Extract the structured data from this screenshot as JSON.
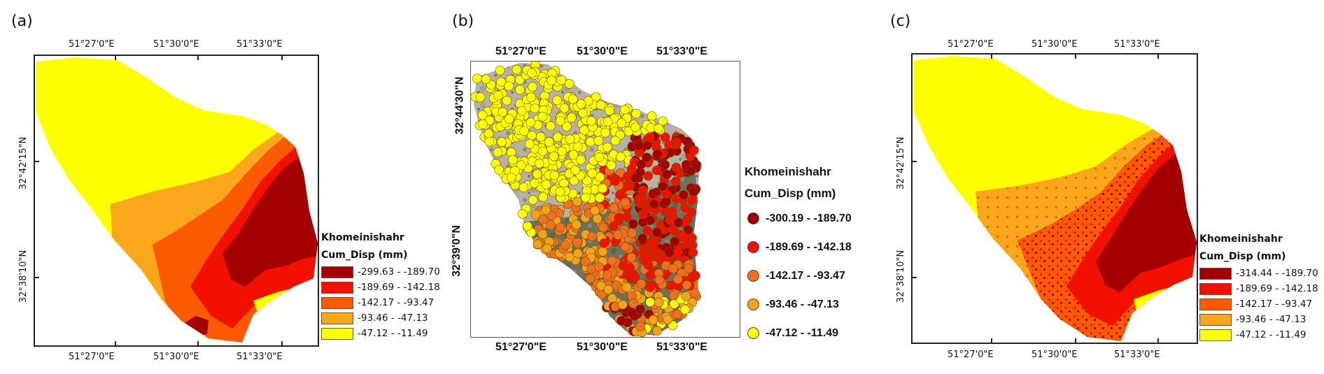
{
  "panels": [
    {
      "label": "(a)",
      "top_ticks": [
        "51°27'0\"E",
        "51°30'0\"E",
        "51°33'0\"E"
      ],
      "bottom_ticks": [
        "51°27'0\"E",
        "51°30'0\"E",
        "51°33'0\"E"
      ],
      "left_ticks": [
        "32°42'15\"N",
        "32°38'10\"N"
      ],
      "legend": {
        "title_line1": "Khomeinishahr",
        "title_line2": "Cum_Disp (mm)",
        "classes": [
          {
            "range": "-299.63 - -189.70",
            "color": "#a50000"
          },
          {
            "range": "-189.69 - -142.18",
            "color": "#f21000"
          },
          {
            "range": "-142.17 -  -93.47",
            "color": "#fa5a00"
          },
          {
            "range": " -93.46 -  -47.13",
            "color": "#fba71b"
          },
          {
            "range": " -47.12 -  -11.49",
            "color": "#ffff00"
          }
        ]
      }
    },
    {
      "label": "(b)",
      "top_ticks": [
        "51°27'0\"E",
        "51°30'0\"E",
        "51°33'0\"E"
      ],
      "bottom_ticks": [
        "51°27'0\"E",
        "51°30'0\"E",
        "51°33'0\"E"
      ],
      "left_ticks": [
        "32°44'30\"N",
        "32°39'0\"N"
      ],
      "legend": {
        "title_line1": "Khomeinishahr",
        "title_line2": "Cum_Disp (mm)",
        "classes": [
          {
            "range": "-300.19 - -189.70",
            "color": "#a50000"
          },
          {
            "range": "-189.69 - -142.18",
            "color": "#f21000"
          },
          {
            "range": "-142.17 -  -93.47",
            "color": "#f07020"
          },
          {
            "range": "-93.46 -  -47.13",
            "color": "#f6a31c"
          },
          {
            "range": "-47.12 -  -11.49",
            "color": "#ffff00"
          }
        ]
      }
    },
    {
      "label": "(c)",
      "top_ticks": [
        "51°27'0\"E",
        "51°30'0\"E",
        "51°33'0\"E"
      ],
      "bottom_ticks": [
        "51°27'0\"E",
        "51°30'0\"E",
        "51°33'0\"E"
      ],
      "left_ticks": [
        "32°42'15\"N",
        "32°38'10\"N"
      ],
      "legend": {
        "title_line1": "Khomeinishahr",
        "title_line2": "Cum_Disp (mm)",
        "classes": [
          {
            "range": "-314.44 - -189.70",
            "color": "#a50000"
          },
          {
            "range": "-189.69 - -142.18",
            "color": "#f21000"
          },
          {
            "range": "-142.17 -  -93.47",
            "color": "#fa5a00"
          },
          {
            "range": " -93.46 -  -47.13",
            "color": "#fba71b"
          },
          {
            "range": " -47.12 -  -11.49",
            "color": "#ffff00"
          }
        ]
      }
    }
  ]
}
